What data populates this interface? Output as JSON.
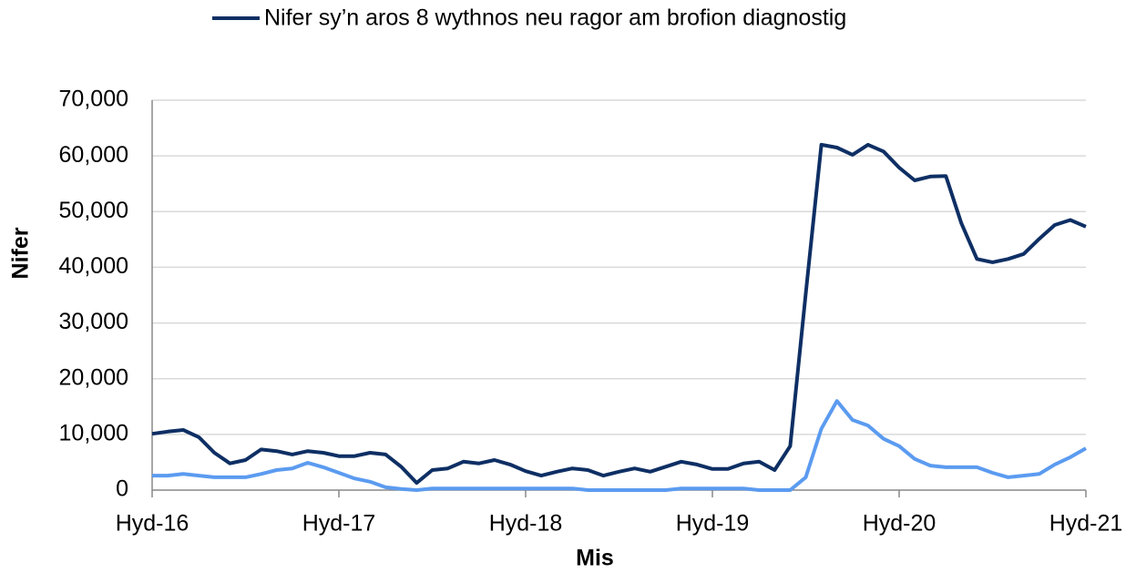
{
  "chart_data": {
    "type": "line",
    "legend_title": null,
    "xlabel": "Mis",
    "ylabel": "Nifer",
    "categories": [
      "Hyd-16",
      null,
      null,
      null,
      null,
      null,
      null,
      null,
      null,
      null,
      null,
      null,
      "Hyd-17",
      null,
      null,
      null,
      null,
      null,
      null,
      null,
      null,
      null,
      null,
      null,
      "Hyd-18",
      null,
      null,
      null,
      null,
      null,
      null,
      null,
      null,
      null,
      null,
      null,
      "Hyd-19",
      null,
      null,
      null,
      null,
      null,
      null,
      null,
      null,
      null,
      null,
      null,
      "Hyd-20",
      null,
      null,
      null,
      null,
      null,
      null,
      null,
      null,
      null,
      null,
      null,
      "Hyd-21"
    ],
    "series": [
      {
        "name": "Nifer sy’n aros 8 wythnos neu ragor am brofion diagnostig",
        "color": "#0e2f64",
        "values": [
          10100,
          10500,
          10800,
          9500,
          6700,
          4800,
          5400,
          7300,
          7000,
          6400,
          7000,
          6700,
          6100,
          6100,
          6700,
          6400,
          4200,
          1300,
          3600,
          3900,
          5100,
          4800,
          5400,
          4600,
          3400,
          2600,
          3300,
          3900,
          3600,
          2600,
          3300,
          3900,
          3300,
          4200,
          5100,
          4600,
          3800,
          3800,
          4800,
          5100,
          3600,
          7900,
          35300,
          62000,
          61500,
          60200,
          62000,
          60800,
          57900,
          55600,
          56300,
          56400,
          47900,
          41500,
          40900,
          41500,
          42400,
          45100,
          47600,
          48500,
          47300
        ]
      },
      {
        "color": "#5b9bf0",
        "values": [
          2600,
          2600,
          2900,
          2600,
          2300,
          2300,
          2300,
          2900,
          3600,
          3900,
          4900,
          4100,
          3100,
          2100,
          1500,
          500,
          200,
          0,
          300,
          300,
          300,
          300,
          300,
          300,
          300,
          300,
          300,
          300,
          0,
          0,
          0,
          0,
          0,
          0,
          300,
          300,
          300,
          300,
          300,
          0,
          0,
          0,
          2300,
          11000,
          16000,
          12600,
          11600,
          9200,
          7900,
          5600,
          4400,
          4100,
          4100,
          4100,
          3100,
          2300,
          2600,
          2900,
          4600,
          5900,
          7500
        ]
      }
    ],
    "ylim": [
      0,
      70000
    ],
    "yticks": [
      0,
      {
        "value": 10000,
        "label": "10,000"
      },
      {
        "value": 20000,
        "label": "20,000"
      },
      {
        "value": 30000,
        "label": "30,000"
      },
      {
        "value": 40000,
        "label": "40,000"
      },
      {
        "value": 50000,
        "label": "50,000"
      },
      {
        "value": 60000,
        "label": "60,000"
      },
      {
        "value": 70000,
        "label": "70,000"
      }
    ],
    "grid": true
  }
}
